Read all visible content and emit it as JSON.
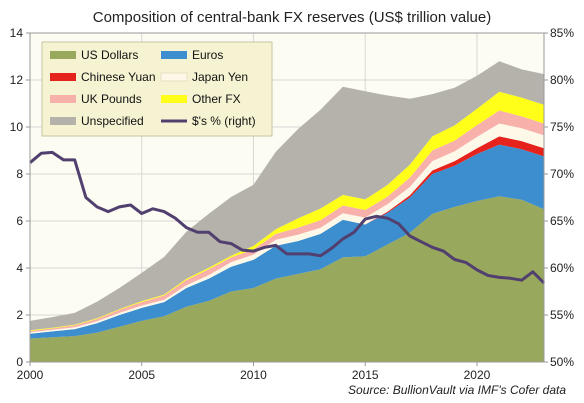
{
  "chart_data": {
    "type": "area",
    "title": "Composition of central-bank  FX reserves (US$ trillion value)",
    "source_label": "Source:",
    "source_text": " BullionVault via IMF's Cofer  data",
    "x_ticks": [
      "2000",
      "2005",
      "2010",
      "2015",
      "2020"
    ],
    "xlim": [
      2000,
      2023
    ],
    "y_left_ticks": [
      "0",
      "2",
      "4",
      "6",
      "8",
      "10",
      "12",
      "14"
    ],
    "ylim_left": [
      0,
      14
    ],
    "y_right_ticks": [
      "50%",
      "55%",
      "60%",
      "65%",
      "70%",
      "75%",
      "80%",
      "85%"
    ],
    "ylim_right": [
      50,
      85
    ],
    "grid": true,
    "legend_position": "top-left",
    "colors": {
      "usd": "#98a85c",
      "eur": "#3d8ece",
      "cny": "#e5221c",
      "jpy": "#fdf8e8",
      "gbp": "#f7b0aa",
      "other": "#ffff1a",
      "unspecified": "#b4b2ab",
      "share_line": "#51406f",
      "plot_bg": "#fcfcf3",
      "legend_bg": "#f6f3d2"
    },
    "x": [
      2000,
      2001,
      2002,
      2003,
      2004,
      2005,
      2006,
      2007,
      2008,
      2009,
      2010,
      2011,
      2012,
      2013,
      2014,
      2015,
      2016,
      2017,
      2018,
      2019,
      2020,
      2021,
      2022,
      2023
    ],
    "series": [
      {
        "key": "usd",
        "name": "US Dollars",
        "values": [
          1.0,
          1.05,
          1.1,
          1.25,
          1.5,
          1.75,
          1.95,
          2.35,
          2.6,
          3.0,
          3.15,
          3.55,
          3.75,
          3.95,
          4.45,
          4.5,
          5.0,
          5.5,
          6.3,
          6.6,
          6.85,
          7.05,
          6.9,
          6.5
        ]
      },
      {
        "key": "eur",
        "name": "Euros",
        "values": [
          0.2,
          0.25,
          0.3,
          0.4,
          0.5,
          0.55,
          0.6,
          0.8,
          0.95,
          1.05,
          1.2,
          1.4,
          1.4,
          1.5,
          1.6,
          1.35,
          1.35,
          1.5,
          1.7,
          1.75,
          2.0,
          2.2,
          2.15,
          2.25
        ]
      },
      {
        "key": "cny",
        "name": "Chinese Yuan",
        "values": [
          0,
          0,
          0,
          0,
          0,
          0,
          0,
          0,
          0,
          0,
          0,
          0,
          0,
          0,
          0,
          0,
          0.05,
          0.1,
          0.15,
          0.2,
          0.25,
          0.35,
          0.35,
          0.35
        ]
      },
      {
        "key": "jpy",
        "name": "Japan Yen",
        "values": [
          0.07,
          0.07,
          0.08,
          0.08,
          0.09,
          0.1,
          0.1,
          0.12,
          0.15,
          0.2,
          0.22,
          0.25,
          0.27,
          0.26,
          0.28,
          0.3,
          0.32,
          0.35,
          0.4,
          0.42,
          0.48,
          0.55,
          0.55,
          0.55
        ]
      },
      {
        "key": "gbp",
        "name": "UK Pounds",
        "values": [
          0.05,
          0.06,
          0.08,
          0.1,
          0.13,
          0.15,
          0.18,
          0.22,
          0.25,
          0.2,
          0.22,
          0.25,
          0.3,
          0.32,
          0.33,
          0.32,
          0.32,
          0.4,
          0.45,
          0.45,
          0.5,
          0.55,
          0.5,
          0.5
        ]
      },
      {
        "key": "other",
        "name": "Other FX",
        "values": [
          0.03,
          0.03,
          0.03,
          0.03,
          0.03,
          0.04,
          0.04,
          0.05,
          0.06,
          0.07,
          0.15,
          0.2,
          0.4,
          0.5,
          0.45,
          0.45,
          0.5,
          0.55,
          0.6,
          0.65,
          0.7,
          0.8,
          0.8,
          0.8
        ]
      },
      {
        "key": "unspecified",
        "name": "Unspecified",
        "values": [
          0.4,
          0.45,
          0.5,
          0.7,
          0.9,
          1.2,
          1.6,
          2.0,
          2.3,
          2.5,
          2.6,
          3.3,
          3.8,
          4.2,
          4.6,
          4.6,
          3.8,
          2.8,
          1.8,
          1.6,
          1.4,
          1.3,
          1.2,
          1.3
        ]
      }
    ],
    "share_line": {
      "name": "$'s % (right)",
      "x": [
        2000,
        2000.5,
        2001,
        2001.5,
        2002,
        2002.5,
        2003,
        2003.5,
        2004,
        2004.5,
        2005,
        2005.5,
        2006,
        2006.5,
        2007,
        2007.5,
        2008,
        2008.5,
        2009,
        2009.5,
        2010,
        2010.5,
        2011,
        2011.5,
        2012,
        2012.5,
        2013,
        2013.5,
        2014,
        2014.5,
        2015,
        2015.5,
        2016,
        2016.5,
        2017,
        2017.5,
        2018,
        2018.5,
        2019,
        2019.5,
        2020,
        2020.5,
        2021,
        2021.5,
        2022,
        2022.5,
        2023
      ],
      "values": [
        71.2,
        72.2,
        72.3,
        71.5,
        71.5,
        67.5,
        66.5,
        66.0,
        66.5,
        66.7,
        65.8,
        66.3,
        66.0,
        65.3,
        64.3,
        63.8,
        63.8,
        62.8,
        62.6,
        61.9,
        61.8,
        62.2,
        62.4,
        61.5,
        61.5,
        61.5,
        61.3,
        62.1,
        63.1,
        63.8,
        65.2,
        65.5,
        65.3,
        64.7,
        63.4,
        62.8,
        62.2,
        61.8,
        60.9,
        60.6,
        59.8,
        59.2,
        59.0,
        58.9,
        58.7,
        59.6,
        58.4
      ]
    },
    "legend": [
      {
        "key": "usd",
        "label": "US Dollars",
        "kind": "swatch"
      },
      {
        "key": "eur",
        "label": "Euros",
        "kind": "swatch"
      },
      {
        "key": "cny",
        "label": "Chinese Yuan",
        "kind": "swatch"
      },
      {
        "key": "jpy",
        "label": "Japan Yen",
        "kind": "swatch"
      },
      {
        "key": "gbp",
        "label": "UK Pounds",
        "kind": "swatch"
      },
      {
        "key": "other",
        "label": "Other FX",
        "kind": "swatch"
      },
      {
        "key": "unspecified",
        "label": "Unspecified",
        "kind": "swatch"
      },
      {
        "key": "share_line",
        "label": "$'s % (right)",
        "kind": "line"
      }
    ]
  }
}
